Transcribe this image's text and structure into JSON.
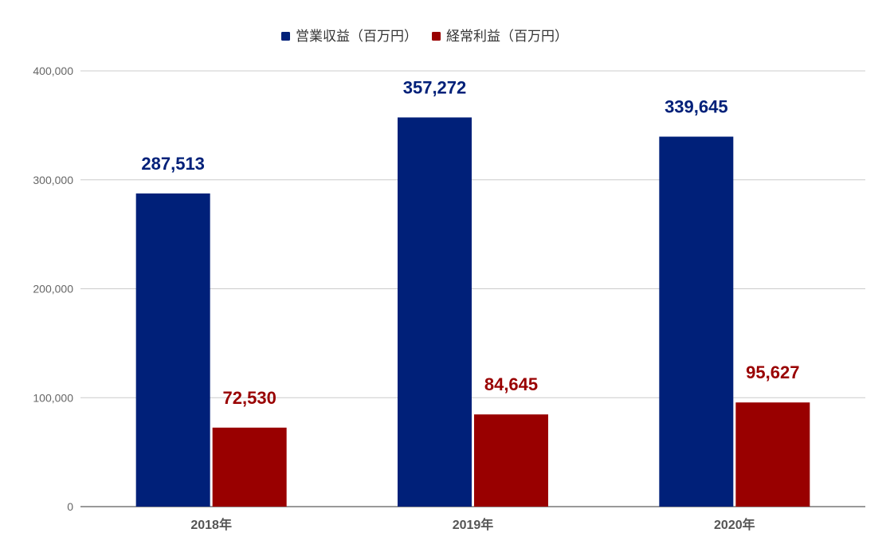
{
  "chart_data": {
    "type": "bar",
    "categories": [
      "2018年",
      "2019年",
      "2020年"
    ],
    "series": [
      {
        "name": "営業収益（百万円）",
        "values": [
          287513,
          357272,
          339645
        ],
        "labels": [
          "287,513",
          "357,272",
          "339,645"
        ],
        "color": "#002079"
      },
      {
        "name": "経常利益（百万円）",
        "values": [
          72530,
          84645,
          95627
        ],
        "labels": [
          "72,530",
          "84,645",
          "95,627"
        ],
        "color": "#990000"
      }
    ],
    "yticks": [
      0,
      100000,
      200000,
      300000,
      400000
    ],
    "ytick_labels": [
      "0",
      "100,000",
      "200,000",
      "300,000",
      "400,000"
    ],
    "ylim": [
      0,
      400000
    ],
    "legend_position": "top-center",
    "grid": true,
    "title": "",
    "xlabel": "",
    "ylabel": ""
  }
}
